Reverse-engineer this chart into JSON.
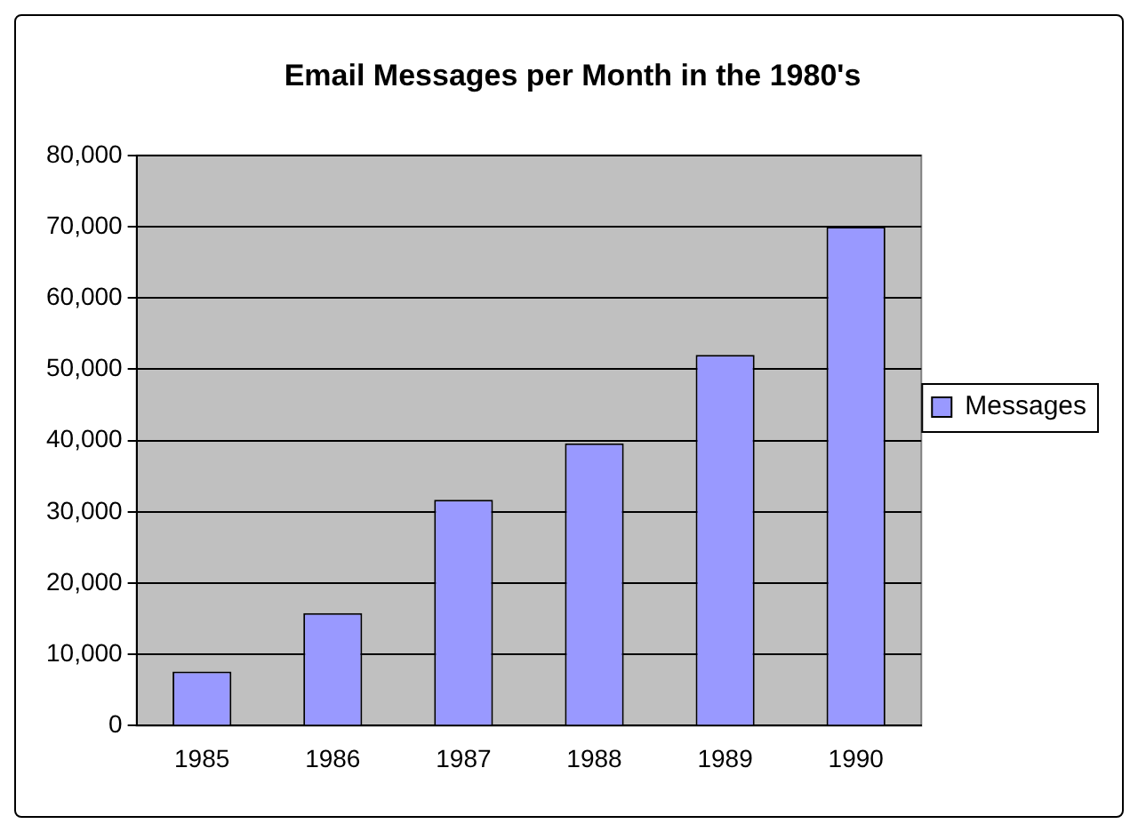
{
  "chart_data": {
    "type": "bar",
    "title": "Email Messages per Month in the 1980's",
    "categories": [
      "1985",
      "1986",
      "1987",
      "1988",
      "1989",
      "1990"
    ],
    "series": [
      {
        "name": "Messages",
        "color": "#9999ff",
        "values": [
          7600,
          15800,
          31700,
          39600,
          52000,
          70000
        ]
      }
    ],
    "ylim": [
      0,
      80000
    ],
    "yticks": [
      0,
      {
        "value": 10000,
        "label": "10,000"
      },
      {
        "value": 20000,
        "label": "20,000"
      },
      {
        "value": 30000,
        "label": "30,000"
      },
      {
        "value": 40000,
        "label": "40,000"
      },
      {
        "value": 50000,
        "label": "50,000"
      },
      {
        "value": 60000,
        "label": "60,000"
      },
      {
        "value": 70000,
        "label": "70,000"
      },
      {
        "value": 80000,
        "label": "80,000"
      }
    ],
    "grid": "y",
    "legend": "right"
  }
}
